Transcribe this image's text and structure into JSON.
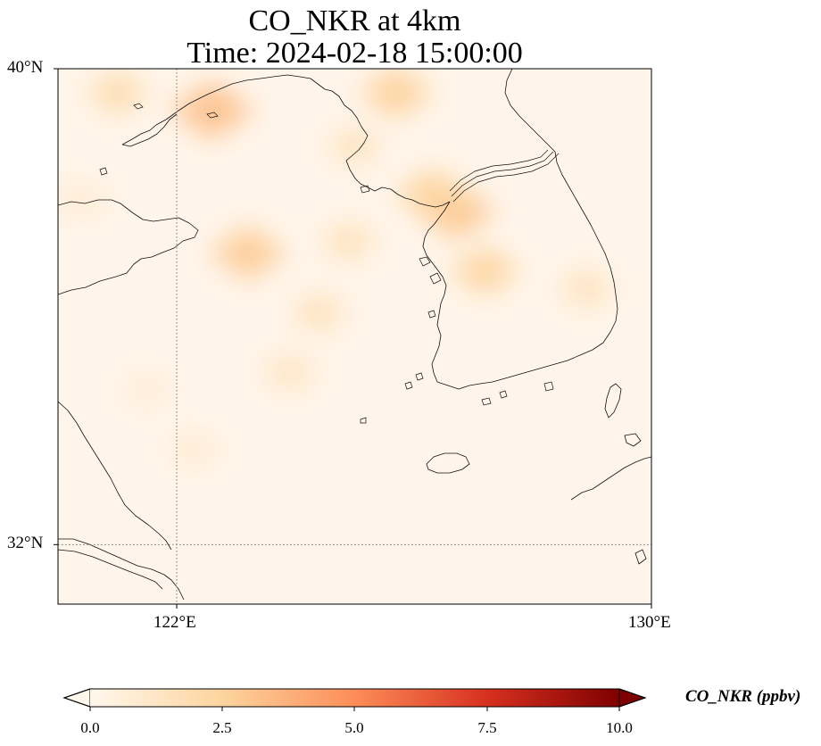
{
  "title": {
    "line1": "CO_NKR at 4km",
    "line2": "Time: 2024-02-18 15:00:00"
  },
  "axes": {
    "lat_ticks": [
      "40°N",
      "32°N"
    ],
    "lon_ticks": [
      "122°E",
      "130°E"
    ],
    "lon_range": [
      120,
      130
    ],
    "lat_range": [
      31,
      40
    ],
    "gridlines": "dotted"
  },
  "colorbar": {
    "title": "CO_NKR (ppbv)",
    "tick_labels": [
      "0.0",
      "2.5",
      "5.0",
      "7.5",
      "10.0"
    ],
    "range": [
      0,
      10
    ],
    "colormap": "OrRd",
    "colors": [
      "#fff7ec",
      "#fdd49e",
      "#fc8d59",
      "#d7301f",
      "#7f0000"
    ],
    "extend": "both"
  },
  "field_blobs": [
    {
      "lon": 122.6,
      "lat": 39.3,
      "value": 3.2
    },
    {
      "lon": 121.0,
      "lat": 39.6,
      "value": 2.0
    },
    {
      "lon": 125.7,
      "lat": 39.6,
      "value": 2.6
    },
    {
      "lon": 126.7,
      "lat": 37.6,
      "value": 3.0
    },
    {
      "lon": 126.3,
      "lat": 37.9,
      "value": 2.5
    },
    {
      "lon": 127.2,
      "lat": 36.6,
      "value": 2.4
    },
    {
      "lon": 123.2,
      "lat": 36.9,
      "value": 2.8
    },
    {
      "lon": 124.4,
      "lat": 35.9,
      "value": 1.6
    },
    {
      "lon": 123.9,
      "lat": 34.9,
      "value": 1.4
    },
    {
      "lon": 124.9,
      "lat": 37.1,
      "value": 1.6
    },
    {
      "lon": 125.0,
      "lat": 38.7,
      "value": 1.5
    },
    {
      "lon": 128.9,
      "lat": 36.3,
      "value": 1.5
    },
    {
      "lon": 122.3,
      "lat": 33.6,
      "value": 1.0
    },
    {
      "lon": 121.5,
      "lat": 34.6,
      "value": 0.9
    },
    {
      "lon": 120.4,
      "lat": 37.8,
      "value": 1.0
    }
  ]
}
